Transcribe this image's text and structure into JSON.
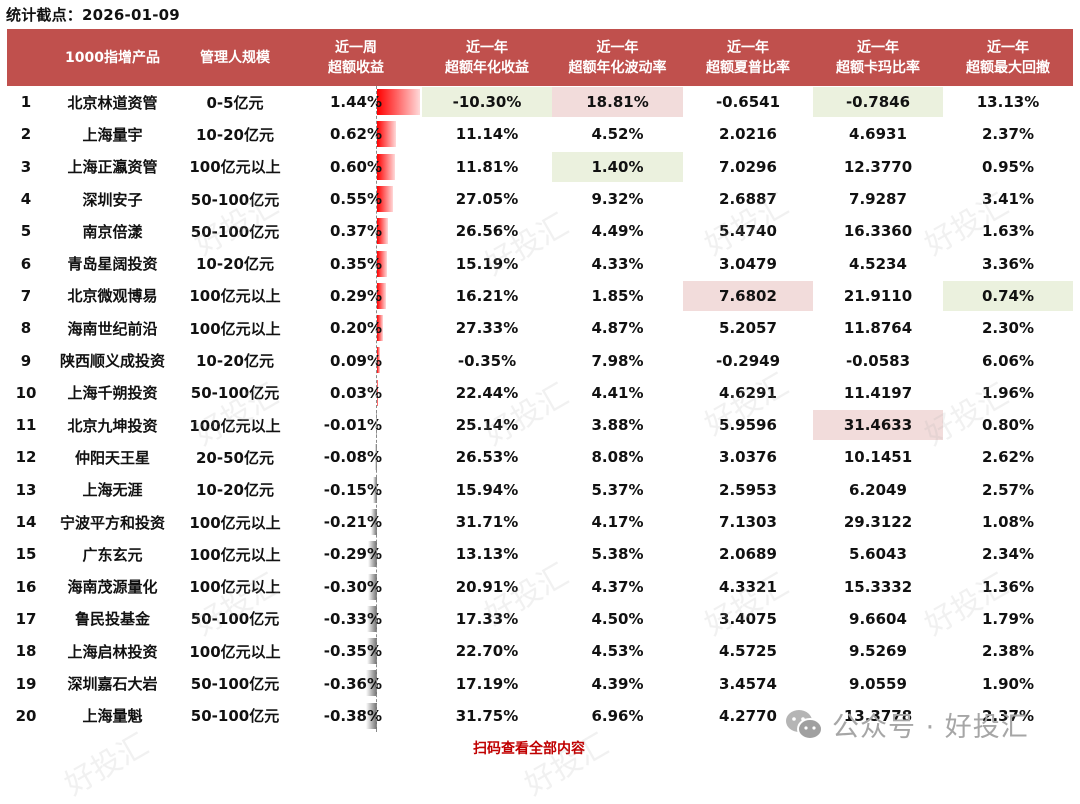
{
  "title": "统计截点：2026-01-09",
  "header": {
    "columns": [
      {
        "line1": "",
        "line2": ""
      },
      {
        "line1": "1000指增产品",
        "line2": ""
      },
      {
        "line1": "管理人规模",
        "line2": ""
      },
      {
        "line1": "近一周",
        "line2": "超额收益"
      },
      {
        "line1": "近一年",
        "line2": "超额年化收益"
      },
      {
        "line1": "近一年",
        "line2": "超额年化波动率"
      },
      {
        "line1": "近一年",
        "line2": "超额夏普比率"
      },
      {
        "line1": "近一年",
        "line2": "超额卡玛比率"
      },
      {
        "line1": "近一年",
        "line2": "超额最大回撤"
      }
    ]
  },
  "rows": [
    {
      "rank": "1",
      "name": "北京林道资管",
      "scale": "0-5亿元",
      "weekly": "1.44%",
      "annual": "-10.30%",
      "vol": "18.81%",
      "sharpe": "-0.6541",
      "calmar": "-0.7846",
      "mdd": "13.13%"
    },
    {
      "rank": "2",
      "name": "上海量宇",
      "scale": "10-20亿元",
      "weekly": "0.62%",
      "annual": "11.14%",
      "vol": "4.52%",
      "sharpe": "2.0216",
      "calmar": "4.6931",
      "mdd": "2.37%"
    },
    {
      "rank": "3",
      "name": "上海正瀛资管",
      "scale": "100亿元以上",
      "weekly": "0.60%",
      "annual": "11.81%",
      "vol": "1.40%",
      "sharpe": "7.0296",
      "calmar": "12.3770",
      "mdd": "0.95%"
    },
    {
      "rank": "4",
      "name": "深圳安子",
      "scale": "50-100亿元",
      "weekly": "0.55%",
      "annual": "27.05%",
      "vol": "9.32%",
      "sharpe": "2.6887",
      "calmar": "7.9287",
      "mdd": "3.41%"
    },
    {
      "rank": "5",
      "name": "南京倍漾",
      "scale": "50-100亿元",
      "weekly": "0.37%",
      "annual": "26.56%",
      "vol": "4.49%",
      "sharpe": "5.4740",
      "calmar": "16.3360",
      "mdd": "1.63%"
    },
    {
      "rank": "6",
      "name": "青岛星阔投资",
      "scale": "10-20亿元",
      "weekly": "0.35%",
      "annual": "15.19%",
      "vol": "4.33%",
      "sharpe": "3.0479",
      "calmar": "4.5234",
      "mdd": "3.36%"
    },
    {
      "rank": "7",
      "name": "北京微观博易",
      "scale": "100亿元以上",
      "weekly": "0.29%",
      "annual": "16.21%",
      "vol": "1.85%",
      "sharpe": "7.6802",
      "calmar": "21.9110",
      "mdd": "0.74%"
    },
    {
      "rank": "8",
      "name": "海南世纪前沿",
      "scale": "100亿元以上",
      "weekly": "0.20%",
      "annual": "27.33%",
      "vol": "4.87%",
      "sharpe": "5.2057",
      "calmar": "11.8764",
      "mdd": "2.30%"
    },
    {
      "rank": "9",
      "name": "陕西顺义成投资",
      "scale": "10-20亿元",
      "weekly": "0.09%",
      "annual": "-0.35%",
      "vol": "7.98%",
      "sharpe": "-0.2949",
      "calmar": "-0.0583",
      "mdd": "6.06%"
    },
    {
      "rank": "10",
      "name": "上海千朔投资",
      "scale": "50-100亿元",
      "weekly": "0.03%",
      "annual": "22.44%",
      "vol": "4.41%",
      "sharpe": "4.6291",
      "calmar": "11.4197",
      "mdd": "1.96%"
    },
    {
      "rank": "11",
      "name": "北京九坤投资",
      "scale": "100亿元以上",
      "weekly": "-0.01%",
      "annual": "25.14%",
      "vol": "3.88%",
      "sharpe": "5.9596",
      "calmar": "31.4633",
      "mdd": "0.80%"
    },
    {
      "rank": "12",
      "name": "仲阳天王星",
      "scale": "20-50亿元",
      "weekly": "-0.08%",
      "annual": "26.53%",
      "vol": "8.08%",
      "sharpe": "3.0376",
      "calmar": "10.1451",
      "mdd": "2.62%"
    },
    {
      "rank": "13",
      "name": "上海无涯",
      "scale": "10-20亿元",
      "weekly": "-0.15%",
      "annual": "15.94%",
      "vol": "5.37%",
      "sharpe": "2.5953",
      "calmar": "6.2049",
      "mdd": "2.57%"
    },
    {
      "rank": "14",
      "name": "宁波平方和投资",
      "scale": "100亿元以上",
      "weekly": "-0.21%",
      "annual": "31.71%",
      "vol": "4.17%",
      "sharpe": "7.1303",
      "calmar": "29.3122",
      "mdd": "1.08%"
    },
    {
      "rank": "15",
      "name": "广东玄元",
      "scale": "100亿元以上",
      "weekly": "-0.29%",
      "annual": "13.13%",
      "vol": "5.38%",
      "sharpe": "2.0689",
      "calmar": "5.6043",
      "mdd": "2.34%"
    },
    {
      "rank": "16",
      "name": "海南茂源量化",
      "scale": "100亿元以上",
      "weekly": "-0.30%",
      "annual": "20.91%",
      "vol": "4.37%",
      "sharpe": "4.3321",
      "calmar": "15.3332",
      "mdd": "1.36%"
    },
    {
      "rank": "17",
      "name": "鲁民投基金",
      "scale": "50-100亿元",
      "weekly": "-0.33%",
      "annual": "17.33%",
      "vol": "4.50%",
      "sharpe": "3.4075",
      "calmar": "9.6604",
      "mdd": "1.79%"
    },
    {
      "rank": "18",
      "name": "上海启林投资",
      "scale": "100亿元以上",
      "weekly": "-0.35%",
      "annual": "22.70%",
      "vol": "4.53%",
      "sharpe": "4.5725",
      "calmar": "9.5269",
      "mdd": "2.38%"
    },
    {
      "rank": "19",
      "name": "深圳嘉石大岩",
      "scale": "50-100亿元",
      "weekly": "-0.36%",
      "annual": "17.19%",
      "vol": "4.39%",
      "sharpe": "3.4574",
      "calmar": "9.0559",
      "mdd": "1.90%"
    },
    {
      "rank": "20",
      "name": "上海量魁",
      "scale": "50-100亿元",
      "weekly": "-0.38%",
      "annual": "31.75%",
      "vol": "6.96%",
      "sharpe": "4.2770",
      "calmar": "13.3778",
      "mdd": "2.37%"
    }
  ],
  "weekly_bar_values": [
    1.44,
    0.62,
    0.6,
    0.55,
    0.37,
    0.35,
    0.29,
    0.2,
    0.09,
    0.03,
    -0.01,
    -0.08,
    -0.15,
    -0.21,
    -0.29,
    -0.3,
    -0.33,
    -0.35,
    -0.36,
    -0.38
  ],
  "highlights": [
    {
      "row": 0,
      "col": "annual",
      "color": "green"
    },
    {
      "row": 0,
      "col": "vol",
      "color": "red"
    },
    {
      "row": 0,
      "col": "calmar",
      "color": "green"
    },
    {
      "row": 2,
      "col": "vol",
      "color": "green"
    },
    {
      "row": 6,
      "col": "sharpe",
      "color": "red"
    },
    {
      "row": 6,
      "col": "mdd",
      "color": "green"
    },
    {
      "row": 10,
      "col": "calmar",
      "color": "red"
    }
  ],
  "colors": {
    "header_bg": "#c0504d",
    "highlight_green": "#ebf1de",
    "highlight_red": "#f2dcdb",
    "bar_positive": "#ff0000",
    "bar_negative": "#6e6e6e",
    "footer_link": "#c00000"
  },
  "footer": {
    "link_text": "扫码查看全部内容",
    "wechat_icon": "wechat-icon",
    "wechat_label": "公众号 · 好投汇"
  },
  "watermark_text": "好投汇"
}
